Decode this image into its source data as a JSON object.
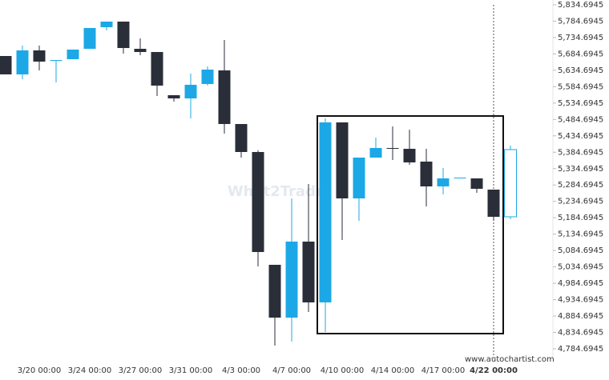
{
  "chart_data": {
    "type": "candlestick",
    "watermark": "What2Trade",
    "source": "www.autochartist.com",
    "up_color": "#1ca8e6",
    "down_color": "#2a2e39",
    "x": [
      null,
      null,
      "3/20 00:00",
      null,
      null,
      "3/24 00:00",
      null,
      null,
      "3/27 00:00",
      null,
      null,
      "3/31 00:00",
      null,
      null,
      "4/3 00:00",
      null,
      null,
      "4/7 00:00",
      null,
      null,
      "4/10 00:00",
      null,
      null,
      "4/14 00:00",
      null,
      null,
      "4/17 00:00",
      null,
      null,
      "4/22 00:00",
      null
    ],
    "open": [
      5678.4,
      5622.3,
      5695.5,
      5663.8,
      5668.7,
      5700.4,
      5766.3,
      5783.4,
      5700.4,
      5690.6,
      5558.8,
      5549.0,
      5593.0,
      5634.5,
      5470.8,
      5385.4,
      5041.1,
      4879.9,
      5111.9,
      4926.3,
      5475.7,
      5243.8,
      5368.3,
      5397.6,
      5395.1,
      5356.1,
      5280.4,
      5304.8,
      5304.8,
      5270.6,
      5187.6
    ],
    "high": [
      5678.4,
      5710.2,
      5710.2,
      5666.2,
      5698.0,
      5763.9,
      5783.4,
      5783.4,
      5732.1,
      5690.6,
      5558.8,
      5624.7,
      5646.7,
      5727.3,
      5470.8,
      5390.3,
      5041.1,
      5243.8,
      5287.7,
      5488.0,
      5475.7,
      5368.3,
      5429.3,
      5463.5,
      5453.6,
      5395.1,
      5336.5,
      5307.2,
      5304.8,
      5270.6,
      5404.9
    ],
    "low": [
      5622.3,
      5607.6,
      5634.5,
      5597.8,
      5668.7,
      5700.4,
      5756.6,
      5685.7,
      5680.8,
      5556.3,
      5539.2,
      5488.0,
      5588.1,
      5441.5,
      5368.3,
      5036.2,
      4794.4,
      4806.6,
      4897.0,
      4835.9,
      5116.8,
      5175.4,
      5368.3,
      5361.0,
      5346.3,
      5219.4,
      5256.0,
      5304.8,
      5260.9,
      5175.4,
      5180.3
    ],
    "close": [
      5622.3,
      5695.5,
      5661.3,
      5666.2,
      5698.0,
      5763.9,
      5783.4,
      5702.8,
      5690.6,
      5588.1,
      5549.0,
      5590.5,
      5636.9,
      5470.8,
      5385.4,
      5080.1,
      4879.9,
      5111.9,
      4926.3,
      5475.7,
      5243.8,
      5368.3,
      5397.6,
      5395.1,
      5353.6,
      5280.4,
      5304.8,
      5307.2,
      5273.1,
      5187.6,
      5392.7
    ],
    "ylim": [
      4784.6945,
      5834.6945
    ],
    "yticks": [
      {
        "value": 5834.6945,
        "label": "5,834.6945"
      },
      {
        "value": 5784.6945,
        "label": "5,784.6945"
      },
      {
        "value": 5734.6945,
        "label": "5,734.6945"
      },
      {
        "value": 5684.6945,
        "label": "5,684.6945"
      },
      {
        "value": 5634.6945,
        "label": "5,634.6945"
      },
      {
        "value": 5584.6945,
        "label": "5,584.6945"
      },
      {
        "value": 5534.6945,
        "label": "5,534.6945"
      },
      {
        "value": 5484.6945,
        "label": "5,484.6945"
      },
      {
        "value": 5434.6945,
        "label": "5,434.6945"
      },
      {
        "value": 5384.6945,
        "label": "5,384.6945"
      },
      {
        "value": 5334.6945,
        "label": "5,334.6945"
      },
      {
        "value": 5284.6945,
        "label": "5,284.6945"
      },
      {
        "value": 5234.6945,
        "label": "5,234.6945"
      },
      {
        "value": 5184.6945,
        "label": "5,184.6945"
      },
      {
        "value": 5134.6945,
        "label": "5,134.6945"
      },
      {
        "value": 5084.6945,
        "label": "5,084.6945"
      },
      {
        "value": 5034.6945,
        "label": "5,034.6945"
      },
      {
        "value": 4984.6945,
        "label": "4,984.6945"
      },
      {
        "value": 4934.6945,
        "label": "4,934.6945"
      },
      {
        "value": 4884.6945,
        "label": "4,884.6945"
      },
      {
        "value": 4834.6945,
        "label": "4,834.6945"
      },
      {
        "value": 4784.6945,
        "label": "4,784.6945"
      }
    ]
  }
}
